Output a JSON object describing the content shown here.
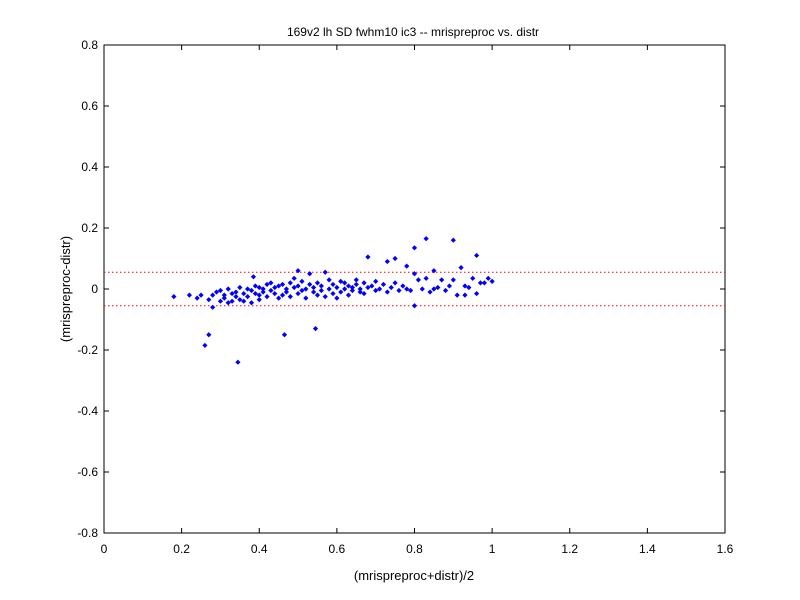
{
  "chart_data": {
    "type": "scatter",
    "title": "169v2 lh SD fwhm10 ic3 -- mrispreproc vs. distr",
    "xlabel": "(mrispreproc+distr)/2",
    "ylabel": "(mrispreproc-distr)",
    "xlim": [
      0,
      1.6
    ],
    "ylim": [
      -0.8,
      0.8
    ],
    "xticks": [
      "0",
      "0.2",
      "0.4",
      "0.6",
      "0.8",
      "1",
      "1.2",
      "1.4",
      "1.6"
    ],
    "yticks": [
      "-0.8",
      "-0.6",
      "-0.4",
      "-0.2",
      "0",
      "0.2",
      "0.4",
      "0.6",
      "0.8"
    ],
    "grid": false,
    "marker_color": "#0000ff",
    "reference_line_color": "#ff0000",
    "reference_lines_y": [
      0.055,
      -0.055
    ],
    "series": [
      {
        "points": [
          [
            0.18,
            -0.025
          ],
          [
            0.22,
            -0.02
          ],
          [
            0.24,
            -0.03
          ],
          [
            0.25,
            -0.02
          ],
          [
            0.26,
            -0.185
          ],
          [
            0.27,
            -0.035
          ],
          [
            0.27,
            -0.15
          ],
          [
            0.28,
            -0.06
          ],
          [
            0.28,
            -0.02
          ],
          [
            0.29,
            -0.01
          ],
          [
            0.3,
            -0.04
          ],
          [
            0.3,
            -0.005
          ],
          [
            0.31,
            -0.02
          ],
          [
            0.31,
            -0.03
          ],
          [
            0.32,
            -0.045
          ],
          [
            0.32,
            0.0
          ],
          [
            0.33,
            -0.015
          ],
          [
            0.33,
            -0.04
          ],
          [
            0.34,
            -0.01
          ],
          [
            0.34,
            -0.025
          ],
          [
            0.345,
            -0.24
          ],
          [
            0.35,
            0.005
          ],
          [
            0.35,
            -0.035
          ],
          [
            0.36,
            -0.015
          ],
          [
            0.36,
            -0.04
          ],
          [
            0.37,
            0.0
          ],
          [
            0.37,
            -0.025
          ],
          [
            0.38,
            -0.005
          ],
          [
            0.38,
            -0.045
          ],
          [
            0.385,
            0.04
          ],
          [
            0.39,
            -0.015
          ],
          [
            0.39,
            0.01
          ],
          [
            0.4,
            -0.02
          ],
          [
            0.4,
            0.005
          ],
          [
            0.4,
            -0.035
          ],
          [
            0.41,
            0.0
          ],
          [
            0.41,
            -0.01
          ],
          [
            0.42,
            0.015
          ],
          [
            0.42,
            -0.025
          ],
          [
            0.43,
            -0.005
          ],
          [
            0.43,
            0.02
          ],
          [
            0.44,
            -0.015
          ],
          [
            0.44,
            0.005
          ],
          [
            0.45,
            -0.03
          ],
          [
            0.45,
            0.01
          ],
          [
            0.46,
            -0.02
          ],
          [
            0.46,
            0.015
          ],
          [
            0.465,
            -0.15
          ],
          [
            0.47,
            0.0
          ],
          [
            0.47,
            -0.01
          ],
          [
            0.48,
            0.02
          ],
          [
            0.48,
            -0.025
          ],
          [
            0.49,
            0.005
          ],
          [
            0.49,
            0.035
          ],
          [
            0.5,
            -0.015
          ],
          [
            0.5,
            0.01
          ],
          [
            0.5,
            0.06
          ],
          [
            0.51,
            -0.005
          ],
          [
            0.51,
            0.025
          ],
          [
            0.52,
            0.0
          ],
          [
            0.52,
            -0.03
          ],
          [
            0.53,
            0.015
          ],
          [
            0.53,
            0.05
          ],
          [
            0.54,
            -0.01
          ],
          [
            0.54,
            0.005
          ],
          [
            0.545,
            -0.13
          ],
          [
            0.55,
            0.02
          ],
          [
            0.55,
            -0.02
          ],
          [
            0.56,
            0.01
          ],
          [
            0.56,
            -0.005
          ],
          [
            0.57,
            0.055
          ],
          [
            0.57,
            -0.025
          ],
          [
            0.58,
            0.0
          ],
          [
            0.58,
            0.03
          ],
          [
            0.59,
            -0.015
          ],
          [
            0.59,
            0.015
          ],
          [
            0.6,
            0.005
          ],
          [
            0.6,
            -0.03
          ],
          [
            0.61,
            0.025
          ],
          [
            0.61,
            -0.01
          ],
          [
            0.62,
            0.0
          ],
          [
            0.62,
            0.02
          ],
          [
            0.63,
            -0.02
          ],
          [
            0.63,
            0.01
          ],
          [
            0.64,
            0.005
          ],
          [
            0.64,
            -0.005
          ],
          [
            0.65,
            0.03
          ],
          [
            0.65,
            0.015
          ],
          [
            0.66,
            -0.01
          ],
          [
            0.66,
            0.0
          ],
          [
            0.67,
            0.02
          ],
          [
            0.67,
            -0.015
          ],
          [
            0.68,
            0.105
          ],
          [
            0.68,
            0.005
          ],
          [
            0.69,
            0.01
          ],
          [
            0.7,
            0.025
          ],
          [
            0.7,
            -0.005
          ],
          [
            0.71,
            0.0
          ],
          [
            0.72,
            0.015
          ],
          [
            0.73,
            0.09
          ],
          [
            0.73,
            -0.01
          ],
          [
            0.74,
            0.005
          ],
          [
            0.75,
            0.02
          ],
          [
            0.75,
            0.1
          ],
          [
            0.76,
            -0.005
          ],
          [
            0.77,
            0.01
          ],
          [
            0.78,
            0.075
          ],
          [
            0.78,
            0.0
          ],
          [
            0.79,
            -0.005
          ],
          [
            0.8,
            0.05
          ],
          [
            0.8,
            0.135
          ],
          [
            0.8,
            -0.055
          ],
          [
            0.81,
            0.03
          ],
          [
            0.82,
            0.0
          ],
          [
            0.83,
            0.165
          ],
          [
            0.83,
            0.035
          ],
          [
            0.84,
            -0.01
          ],
          [
            0.85,
            0.06
          ],
          [
            0.85,
            0.0
          ],
          [
            0.86,
            0.005
          ],
          [
            0.87,
            0.03
          ],
          [
            0.88,
            -0.005
          ],
          [
            0.89,
            0.01
          ],
          [
            0.9,
            0.16
          ],
          [
            0.9,
            0.03
          ],
          [
            0.91,
            -0.02
          ],
          [
            0.92,
            0.07
          ],
          [
            0.93,
            0.01
          ],
          [
            0.93,
            -0.02
          ],
          [
            0.94,
            0.005
          ],
          [
            0.95,
            0.035
          ],
          [
            0.96,
            0.11
          ],
          [
            0.96,
            -0.015
          ],
          [
            0.97,
            0.02
          ],
          [
            0.98,
            0.02
          ],
          [
            0.99,
            0.035
          ],
          [
            1.0,
            0.025
          ]
        ]
      }
    ]
  }
}
